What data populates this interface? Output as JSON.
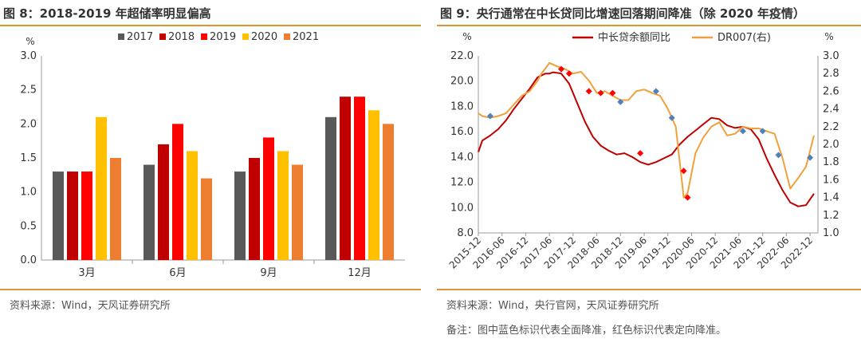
{
  "left": {
    "title": "图 8：2018-2019 年超储率明显偏高",
    "source": "资料来源：Wind，天风证券研究所"
  },
  "right": {
    "title": "图 9：央行通常在中长贷同比增速回落期间降准（除 2020 年疫情）",
    "source": "资料来源：Wind，央行官网，天风证券研究所",
    "note": "备注：图中蓝色标识代表全面降准，红色标识代表定向降准。"
  },
  "chart_data": [
    {
      "type": "bar",
      "categories": [
        "3月",
        "6月",
        "9月",
        "12月"
      ],
      "ylabel": "%",
      "ylim": [
        0,
        3.0
      ],
      "yticks": [
        "0.0",
        "0.5",
        "1.0",
        "1.5",
        "2.0",
        "2.5",
        "3.0"
      ],
      "legend_position": "top",
      "grid": false,
      "series": [
        {
          "name": "2017",
          "color": "#595959",
          "values": [
            1.3,
            1.4,
            1.3,
            2.1
          ]
        },
        {
          "name": "2018",
          "color": "#C00000",
          "values": [
            1.3,
            1.7,
            1.5,
            2.4
          ]
        },
        {
          "name": "2019",
          "color": "#FF0000",
          "values": [
            1.3,
            2.0,
            1.8,
            2.4
          ]
        },
        {
          "name": "2020",
          "color": "#FFC000",
          "values": [
            2.1,
            1.6,
            1.6,
            2.2
          ]
        },
        {
          "name": "2021",
          "color": "#ED7D31",
          "values": [
            1.5,
            1.2,
            1.4,
            2.0
          ]
        }
      ]
    },
    {
      "type": "line",
      "ylabel_left": "%",
      "ylabel_right": "%",
      "ylim_left": [
        8.0,
        22.0
      ],
      "ylim_right": [
        1.0,
        3.0
      ],
      "yticks_left": [
        "8.0",
        "10.0",
        "12.0",
        "14.0",
        "16.0",
        "18.0",
        "20.0",
        "22.0"
      ],
      "yticks_right": [
        "1.0",
        "1.2",
        "1.4",
        "1.6",
        "1.8",
        "2.0",
        "2.2",
        "2.4",
        "2.6",
        "2.8",
        "3.0"
      ],
      "x_ticks": [
        "2015-12",
        "2016-06",
        "2016-12",
        "2017-06",
        "2017-12",
        "2018-06",
        "2018-12",
        "2019-06",
        "2019-12",
        "2020-06",
        "2020-12",
        "2021-06",
        "2021-12",
        "2022-06",
        "2022-12"
      ],
      "legend_position": "top",
      "grid": false,
      "series": [
        {
          "name": "中长贷余额同比",
          "axis": "left",
          "color": "#C00000",
          "x": [
            "2015-12",
            "2016-01",
            "2016-03",
            "2016-05",
            "2016-07",
            "2016-09",
            "2016-11",
            "2017-01",
            "2017-03",
            "2017-05",
            "2017-06",
            "2017-07",
            "2017-09",
            "2017-11",
            "2018-01",
            "2018-03",
            "2018-05",
            "2018-07",
            "2018-09",
            "2018-11",
            "2019-01",
            "2019-03",
            "2019-05",
            "2019-07",
            "2019-09",
            "2019-11",
            "2020-01",
            "2020-03",
            "2020-05",
            "2020-07",
            "2020-09",
            "2020-11",
            "2021-01",
            "2021-03",
            "2021-05",
            "2021-07",
            "2021-09",
            "2021-11",
            "2022-01",
            "2022-03",
            "2022-05",
            "2022-07",
            "2022-09",
            "2022-11",
            "2023-01"
          ],
          "values": [
            14.4,
            15.3,
            15.7,
            16.2,
            16.9,
            17.8,
            18.6,
            19.4,
            20.3,
            20.6,
            20.6,
            20.7,
            20.6,
            19.8,
            18.3,
            16.8,
            15.6,
            14.9,
            14.5,
            14.2,
            14.3,
            14.0,
            13.6,
            13.4,
            13.6,
            13.9,
            14.2,
            15.0,
            15.6,
            16.1,
            16.6,
            17.1,
            17.0,
            16.5,
            16.3,
            16.4,
            16.2,
            15.4,
            13.9,
            12.6,
            11.4,
            10.4,
            10.1,
            10.2,
            11.1
          ]
        },
        {
          "name": "DR007(右)",
          "axis": "right",
          "color": "#F0A03C",
          "x": [
            "2015-12",
            "2016-01",
            "2016-03",
            "2016-05",
            "2016-07",
            "2016-09",
            "2016-11",
            "2017-01",
            "2017-03",
            "2017-04",
            "2017-06",
            "2017-08",
            "2017-10",
            "2017-12",
            "2018-02",
            "2018-04",
            "2018-06",
            "2018-08",
            "2018-10",
            "2018-12",
            "2019-02",
            "2019-04",
            "2019-06",
            "2019-08",
            "2019-10",
            "2019-12",
            "2020-02",
            "2020-04",
            "2020-05",
            "2020-07",
            "2020-09",
            "2020-11",
            "2021-01",
            "2021-03",
            "2021-05",
            "2021-07",
            "2021-09",
            "2021-11",
            "2022-01",
            "2022-03",
            "2022-05",
            "2022-07",
            "2022-09",
            "2022-11",
            "2023-01"
          ],
          "values": [
            2.35,
            2.32,
            2.3,
            2.32,
            2.35,
            2.45,
            2.55,
            2.6,
            2.72,
            2.8,
            2.92,
            2.88,
            2.85,
            2.8,
            2.82,
            2.72,
            2.58,
            2.6,
            2.55,
            2.5,
            2.5,
            2.6,
            2.62,
            2.58,
            2.55,
            2.4,
            2.2,
            1.4,
            1.45,
            1.9,
            2.08,
            2.2,
            2.25,
            2.1,
            2.12,
            2.2,
            2.18,
            2.18,
            2.15,
            2.12,
            1.85,
            1.5,
            1.62,
            1.75,
            2.1
          ]
        }
      ],
      "markers": [
        {
          "type": "全面降准",
          "color": "#4F81BD",
          "x": [
            "2016-03",
            "2018-12",
            "2019-09",
            "2020-01",
            "2021-07",
            "2021-12",
            "2022-04",
            "2022-12"
          ],
          "values": [
            2.32,
            2.48,
            2.6,
            2.3,
            2.15,
            2.15,
            1.88,
            1.85
          ]
        },
        {
          "type": "定向降准",
          "color": "#FF0000",
          "x": [
            "2017-09",
            "2017-11",
            "2018-04",
            "2018-07",
            "2018-10",
            "2019-05",
            "2020-04",
            "2020-05"
          ],
          "values": [
            2.85,
            2.8,
            2.6,
            2.58,
            2.58,
            1.9,
            1.7,
            1.4
          ]
        }
      ]
    }
  ]
}
